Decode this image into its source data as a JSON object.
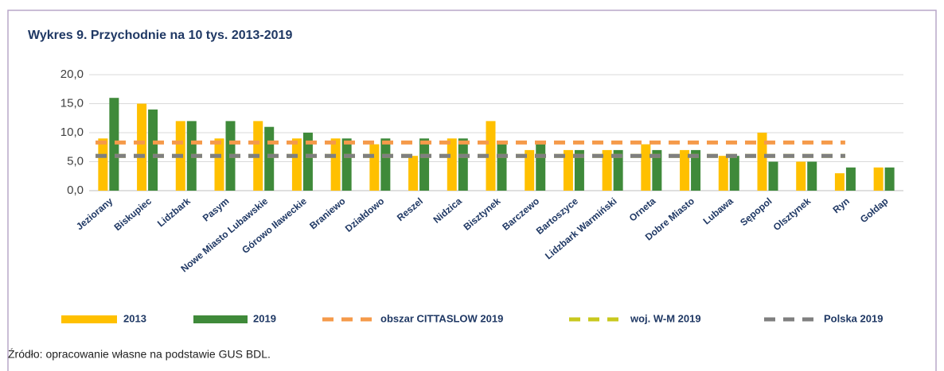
{
  "chart_data": {
    "type": "bar",
    "title": "Wykres 9. Przychodnie na 10 tys. 2013-2019",
    "source": "Źródło: opracowanie własne na podstawie GUS BDL.",
    "categories": [
      "Jeziorany",
      "Biskupiec",
      "Lidzbark",
      "Pasym",
      "Nowe Miasto Lubawskie",
      "Górowo Iławeckie",
      "Braniewo",
      "Działdowo",
      "Reszel",
      "Nidzica",
      "Bisztynek",
      "Barczewo",
      "Bartoszyce",
      "Lidzbark Warmiński",
      "Orneta",
      "Dobre Miasto",
      "Lubawa",
      "Sępopol",
      "Olsztynek",
      "Ryn",
      "Gołdap"
    ],
    "series": [
      {
        "name": "2013",
        "type": "bar",
        "color": "#ffc000",
        "values": [
          9,
          15,
          12,
          9,
          12,
          9,
          9,
          8,
          6,
          9,
          12,
          7,
          7,
          7,
          8,
          7,
          6,
          10,
          5,
          3,
          4
        ]
      },
      {
        "name": "2019",
        "type": "bar",
        "color": "#3f8a3a",
        "values": [
          16,
          14,
          12,
          12,
          11,
          10,
          9,
          9,
          9,
          9,
          8,
          8,
          7,
          7,
          7,
          7,
          6,
          5,
          5,
          4,
          4
        ]
      },
      {
        "name": "obszar CITTASLOW 2019",
        "type": "line",
        "color": "#f59a4a",
        "values": [
          8.3,
          8.3,
          8.3,
          8.3,
          8.3,
          8.3,
          8.3,
          8.3,
          8.3,
          8.3,
          8.3,
          8.3,
          8.3,
          8.3,
          8.3,
          8.3,
          8.3,
          8.3,
          8.3,
          8.3,
          null
        ]
      },
      {
        "name": "woj. W-M 2019",
        "type": "line",
        "color": "#c8c81e",
        "values": [
          6,
          6,
          6,
          6,
          6,
          6,
          6,
          6,
          6,
          6,
          6,
          6,
          6,
          6,
          6,
          6,
          6,
          6,
          6,
          6,
          null
        ]
      },
      {
        "name": "Polska 2019",
        "type": "line",
        "color": "#7f7f7f",
        "values": [
          6,
          6,
          6,
          6,
          6,
          6,
          6,
          6,
          6,
          6,
          6,
          6,
          6,
          6,
          6,
          6,
          6,
          6,
          6,
          6,
          null
        ]
      }
    ],
    "ylim": [
      0,
      20
    ],
    "yticks": [
      {
        "value": 0,
        "label": "0,0"
      },
      {
        "value": 5,
        "label": "5,0"
      },
      {
        "value": 10,
        "label": "10,0"
      },
      {
        "value": 15,
        "label": "15,0"
      },
      {
        "value": 20,
        "label": "20,0"
      }
    ],
    "grid": true,
    "legend": "bottom"
  }
}
